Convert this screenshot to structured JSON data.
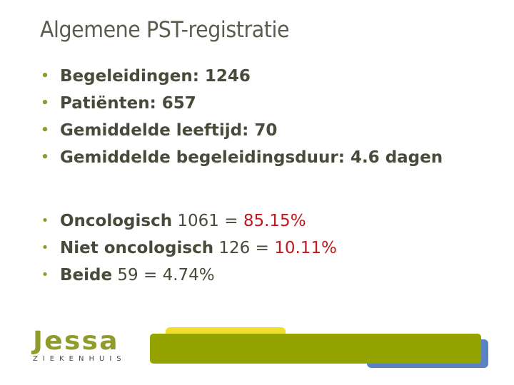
{
  "slide": {
    "title": "Algemene PST-registratie"
  },
  "stats": [
    {
      "text": "Begeleidingen: 1246"
    },
    {
      "text": "Patiënten: 657"
    },
    {
      "text": "Gemiddelde leeftijd: 70"
    },
    {
      "text": "Gemiddelde begeleidingsduur: 4.6 dagen"
    }
  ],
  "breakdown": [
    {
      "category": "Oncologisch",
      "count_text": "1061 =",
      "percent": "85.15%",
      "percent_highlight": true
    },
    {
      "category": "Niet oncologisch",
      "count_text": "126 =",
      "percent": "10.11%",
      "percent_highlight": true
    },
    {
      "category": "Beide",
      "count_text": "59 =",
      "percent": "4.74%",
      "percent_highlight": false
    }
  ],
  "bullet_symbol": "•",
  "logo": {
    "word": "Jessa",
    "subtitle": "ZIEKENHUIS"
  },
  "colors": {
    "bullet": "#8f9b2a",
    "highlight": "#c0181e",
    "bar_olive": "#95a300",
    "bar_yellow": "#f2dd2b",
    "bar_blue": "#5b83c4"
  }
}
